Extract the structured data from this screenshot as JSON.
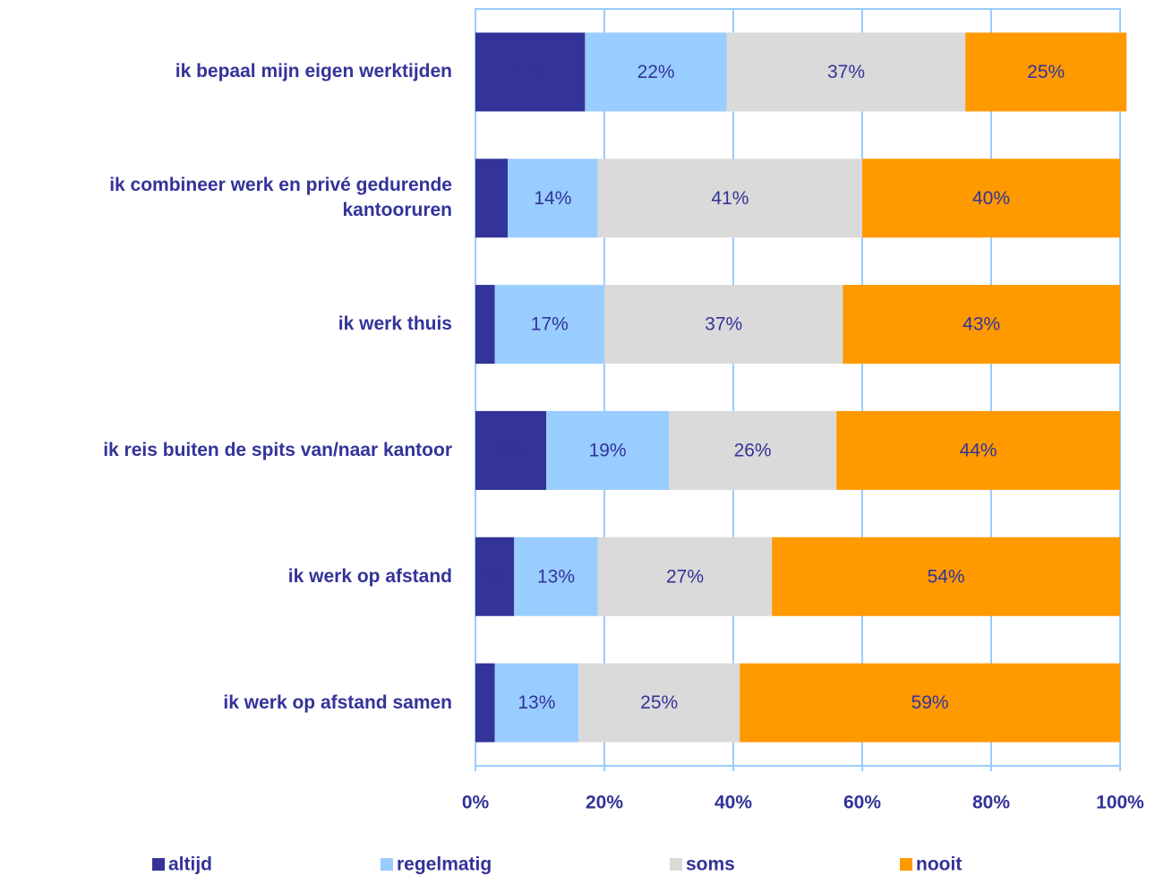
{
  "chart_data": {
    "type": "stacked_barh",
    "categories": [
      "ik bepaal mijn eigen werktijden",
      "ik combineer werk en privé gedurende kantooruren",
      "ik werk thuis",
      "ik reis buiten de spits van/naar kantoor",
      "ik werk op afstand",
      "ik werk op afstand samen"
    ],
    "series": [
      {
        "name": "altijd",
        "color": "#333399",
        "values": [
          17,
          5,
          3,
          11,
          6,
          3
        ],
        "value_labels": [
          "17%",
          null,
          null,
          "11%",
          "6%",
          null
        ]
      },
      {
        "name": "regelmatig",
        "color": "#99ccff",
        "values": [
          22,
          14,
          17,
          19,
          13,
          13
        ],
        "value_labels": [
          "22%",
          "14%",
          "17%",
          "19%",
          "13%",
          "13%"
        ]
      },
      {
        "name": "soms",
        "color": "#dadada",
        "values": [
          37,
          41,
          37,
          26,
          27,
          25
        ],
        "value_labels": [
          "37%",
          "41%",
          "37%",
          "26%",
          "27%",
          "25%"
        ]
      },
      {
        "name": "nooit",
        "color": "#ff9900",
        "values": [
          25,
          40,
          43,
          44,
          54,
          59
        ],
        "value_labels": [
          "25%",
          "40%",
          "43%",
          "44%",
          "54%",
          "59%"
        ]
      }
    ],
    "xlim": [
      0,
      100
    ],
    "xticks": [
      {
        "value": 0,
        "label": "0%"
      },
      {
        "value": 20,
        "label": "20%"
      },
      {
        "value": 40,
        "label": "40%"
      },
      {
        "value": 60,
        "label": "60%"
      },
      {
        "value": 80,
        "label": "80%"
      },
      {
        "value": 100,
        "label": "100%"
      }
    ],
    "grid": true,
    "legend": "bottom"
  }
}
